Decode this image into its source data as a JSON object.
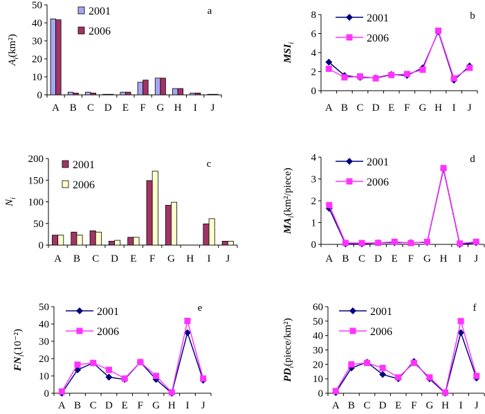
{
  "colors": {
    "bar_lavender": "#a6a6f2",
    "bar_maroon": "#a33365",
    "bar_cream": "#ffffcc",
    "line_2001": "#000080",
    "line_2006": "#ff33ff"
  },
  "chart_data": [
    {
      "panel": "a",
      "type": "bar",
      "categories": [
        "A",
        "B",
        "C",
        "D",
        "E",
        "F",
        "G",
        "H",
        "I",
        "J"
      ],
      "ylabel": {
        "var": "A",
        "sub": "i",
        "unit": "(km²)",
        "bold": false
      },
      "ylim": [
        0,
        50
      ],
      "yticks": [
        0,
        10,
        20,
        30,
        40,
        50
      ],
      "series": [
        {
          "name": "2001",
          "color": "#a6a6f2",
          "values": [
            42.2,
            1.5,
            1.5,
            0.3,
            1.5,
            7.0,
            9.3,
            3.5,
            1.0,
            0.3
          ]
        },
        {
          "name": "2006",
          "color": "#a33365",
          "values": [
            41.7,
            1.0,
            1.0,
            0.3,
            1.5,
            8.2,
            9.3,
            3.5,
            1.0,
            0.3
          ]
        }
      ]
    },
    {
      "panel": "b",
      "type": "line",
      "categories": [
        "A",
        "B",
        "C",
        "D",
        "E",
        "F",
        "G",
        "H",
        "I",
        "J"
      ],
      "ylabel": {
        "var": "MSI",
        "sub": "i",
        "unit": "",
        "bold": true
      },
      "ylim": [
        0,
        8
      ],
      "yticks": [
        0,
        2,
        4,
        6,
        8
      ],
      "series": [
        {
          "name": "2001",
          "color": "#000080",
          "marker": "diamond",
          "values": [
            3.0,
            1.6,
            1.4,
            1.35,
            1.7,
            1.6,
            2.4,
            6.2,
            1.1,
            2.6
          ]
        },
        {
          "name": "2006",
          "color": "#ff33ff",
          "marker": "square",
          "values": [
            2.3,
            1.4,
            1.5,
            1.3,
            1.65,
            1.75,
            2.2,
            6.3,
            1.3,
            2.4
          ]
        }
      ]
    },
    {
      "panel": "c",
      "type": "bar",
      "categories": [
        "A",
        "B",
        "C",
        "D",
        "E",
        "F",
        "G",
        "H",
        "I",
        "J"
      ],
      "ylabel": {
        "var": "N",
        "sub": "i",
        "unit": "",
        "bold": false
      },
      "ylim": [
        0,
        200
      ],
      "yticks": [
        0,
        50,
        100,
        150,
        200
      ],
      "series": [
        {
          "name": "2001",
          "color": "#a33365",
          "values": [
            23,
            30,
            33,
            9,
            18,
            149,
            92,
            0,
            49,
            9
          ]
        },
        {
          "name": "2006",
          "color": "#ffffcc",
          "values": [
            23,
            23,
            30,
            11,
            18,
            171,
            99,
            0,
            61,
            9
          ]
        }
      ]
    },
    {
      "panel": "d",
      "type": "line",
      "categories": [
        "A",
        "B",
        "C",
        "D",
        "E",
        "F",
        "G",
        "H",
        "I",
        "J"
      ],
      "ylabel": {
        "var": "MA",
        "sub": "i",
        "unit": "(km²/piece)",
        "bold": true
      },
      "ylim": [
        0,
        4
      ],
      "yticks": [
        0,
        1,
        2,
        3,
        4
      ],
      "series": [
        {
          "name": "2001",
          "color": "#000080",
          "marker": "diamond",
          "values": [
            1.65,
            0.02,
            0.02,
            0.07,
            0.08,
            0.08,
            0.09,
            3.45,
            0.0,
            0.08
          ]
        },
        {
          "name": "2006",
          "color": "#ff33ff",
          "marker": "square",
          "values": [
            1.8,
            0.07,
            0.06,
            0.07,
            0.12,
            0.06,
            0.12,
            3.5,
            0.04,
            0.12
          ]
        }
      ]
    },
    {
      "panel": "e",
      "type": "line",
      "categories": [
        "A",
        "B",
        "C",
        "D",
        "E",
        "F",
        "G",
        "H",
        "I",
        "J"
      ],
      "ylabel": {
        "var": "FN",
        "sub": "i",
        "unit": "(10⁻²)",
        "bold": true
      },
      "ylim": [
        0,
        50
      ],
      "yticks": [
        0,
        10,
        20,
        30,
        40,
        50
      ],
      "series": [
        {
          "name": "2001",
          "color": "#000080",
          "marker": "diamond",
          "values": [
            0,
            13.5,
            17.5,
            9.3,
            8,
            18,
            8,
            0,
            35,
            7.5
          ]
        },
        {
          "name": "2006",
          "color": "#ff33ff",
          "marker": "square",
          "values": [
            1,
            16.5,
            17.5,
            13.5,
            8.5,
            18,
            10,
            0.5,
            41.8,
            8.5
          ]
        }
      ]
    },
    {
      "panel": "f",
      "type": "line",
      "categories": [
        "A",
        "B",
        "C",
        "D",
        "E",
        "F",
        "G",
        "H",
        "I",
        "J"
      ],
      "ylabel": {
        "var": "PD",
        "sub": "i",
        "unit": "(piece/km²)",
        "bold": true
      },
      "ylim": [
        0,
        60
      ],
      "yticks": [
        0,
        10,
        20,
        30,
        40,
        50,
        60
      ],
      "series": [
        {
          "name": "2001",
          "color": "#000080",
          "marker": "diamond",
          "values": [
            0.5,
            17.5,
            21.5,
            13,
            10,
            22,
            10,
            0,
            42,
            10.5
          ]
        },
        {
          "name": "2006",
          "color": "#ff33ff",
          "marker": "square",
          "values": [
            1.5,
            20,
            21,
            17.5,
            11,
            21,
            11,
            0.5,
            50,
            12
          ]
        }
      ]
    }
  ]
}
